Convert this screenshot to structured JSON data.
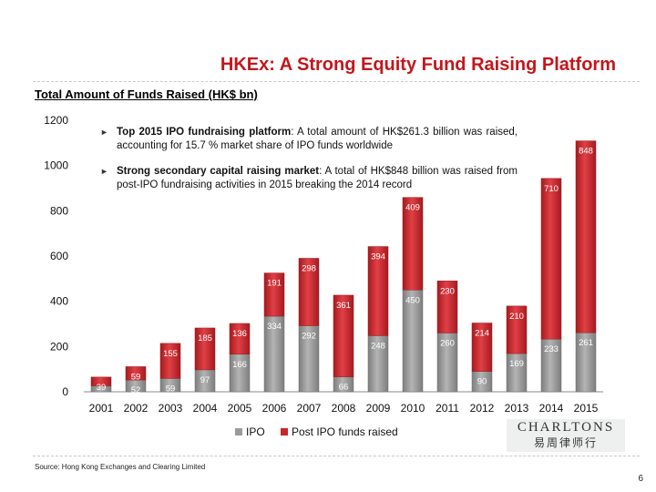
{
  "header": {
    "title": "HKEx: A Strong Equity Fund Raising Platform",
    "subtitle": "Total Amount of Funds Raised (HK$ bn)"
  },
  "bullets": [
    {
      "bold": "Top 2015 IPO fundraising platform",
      "text": ": A total amount of HK$261.3 billion was raised, accounting for 15.7 % market share of IPO funds worldwide"
    },
    {
      "bold": "Strong secondary capital raising market",
      "text": ": A total of HK$848 billion was raised from post-IPO fundraising activities in 2015 breaking the 2014 record"
    }
  ],
  "chart_data": {
    "type": "bar",
    "stacked": true,
    "categories": [
      "2001",
      "2002",
      "2003",
      "2004",
      "2005",
      "2006",
      "2007",
      "2008",
      "2009",
      "2010",
      "2011",
      "2012",
      "2013",
      "2014",
      "2015"
    ],
    "series": [
      {
        "name": "IPO",
        "color": "#9a9a9a",
        "values": [
          26,
          52,
          59,
          97,
          166,
          334,
          292,
          66,
          248,
          450,
          260,
          90,
          169,
          233,
          261
        ]
      },
      {
        "name": "Post IPO funds raised",
        "color": "#c8262b",
        "values": [
          39,
          59,
          155,
          185,
          136,
          191,
          298,
          361,
          394,
          409,
          230,
          214,
          210,
          710,
          848
        ]
      }
    ],
    "yticks": [
      "0",
      "200",
      "400",
      "600",
      "800",
      "1000",
      "1200"
    ],
    "ylim": [
      0,
      1200
    ]
  },
  "footer": {
    "source": "Source: Hong Kong Exchanges and Clearing Limited",
    "page": "6",
    "logo_line1": "CHARLTONS",
    "logo_line2": "易周律师行"
  }
}
